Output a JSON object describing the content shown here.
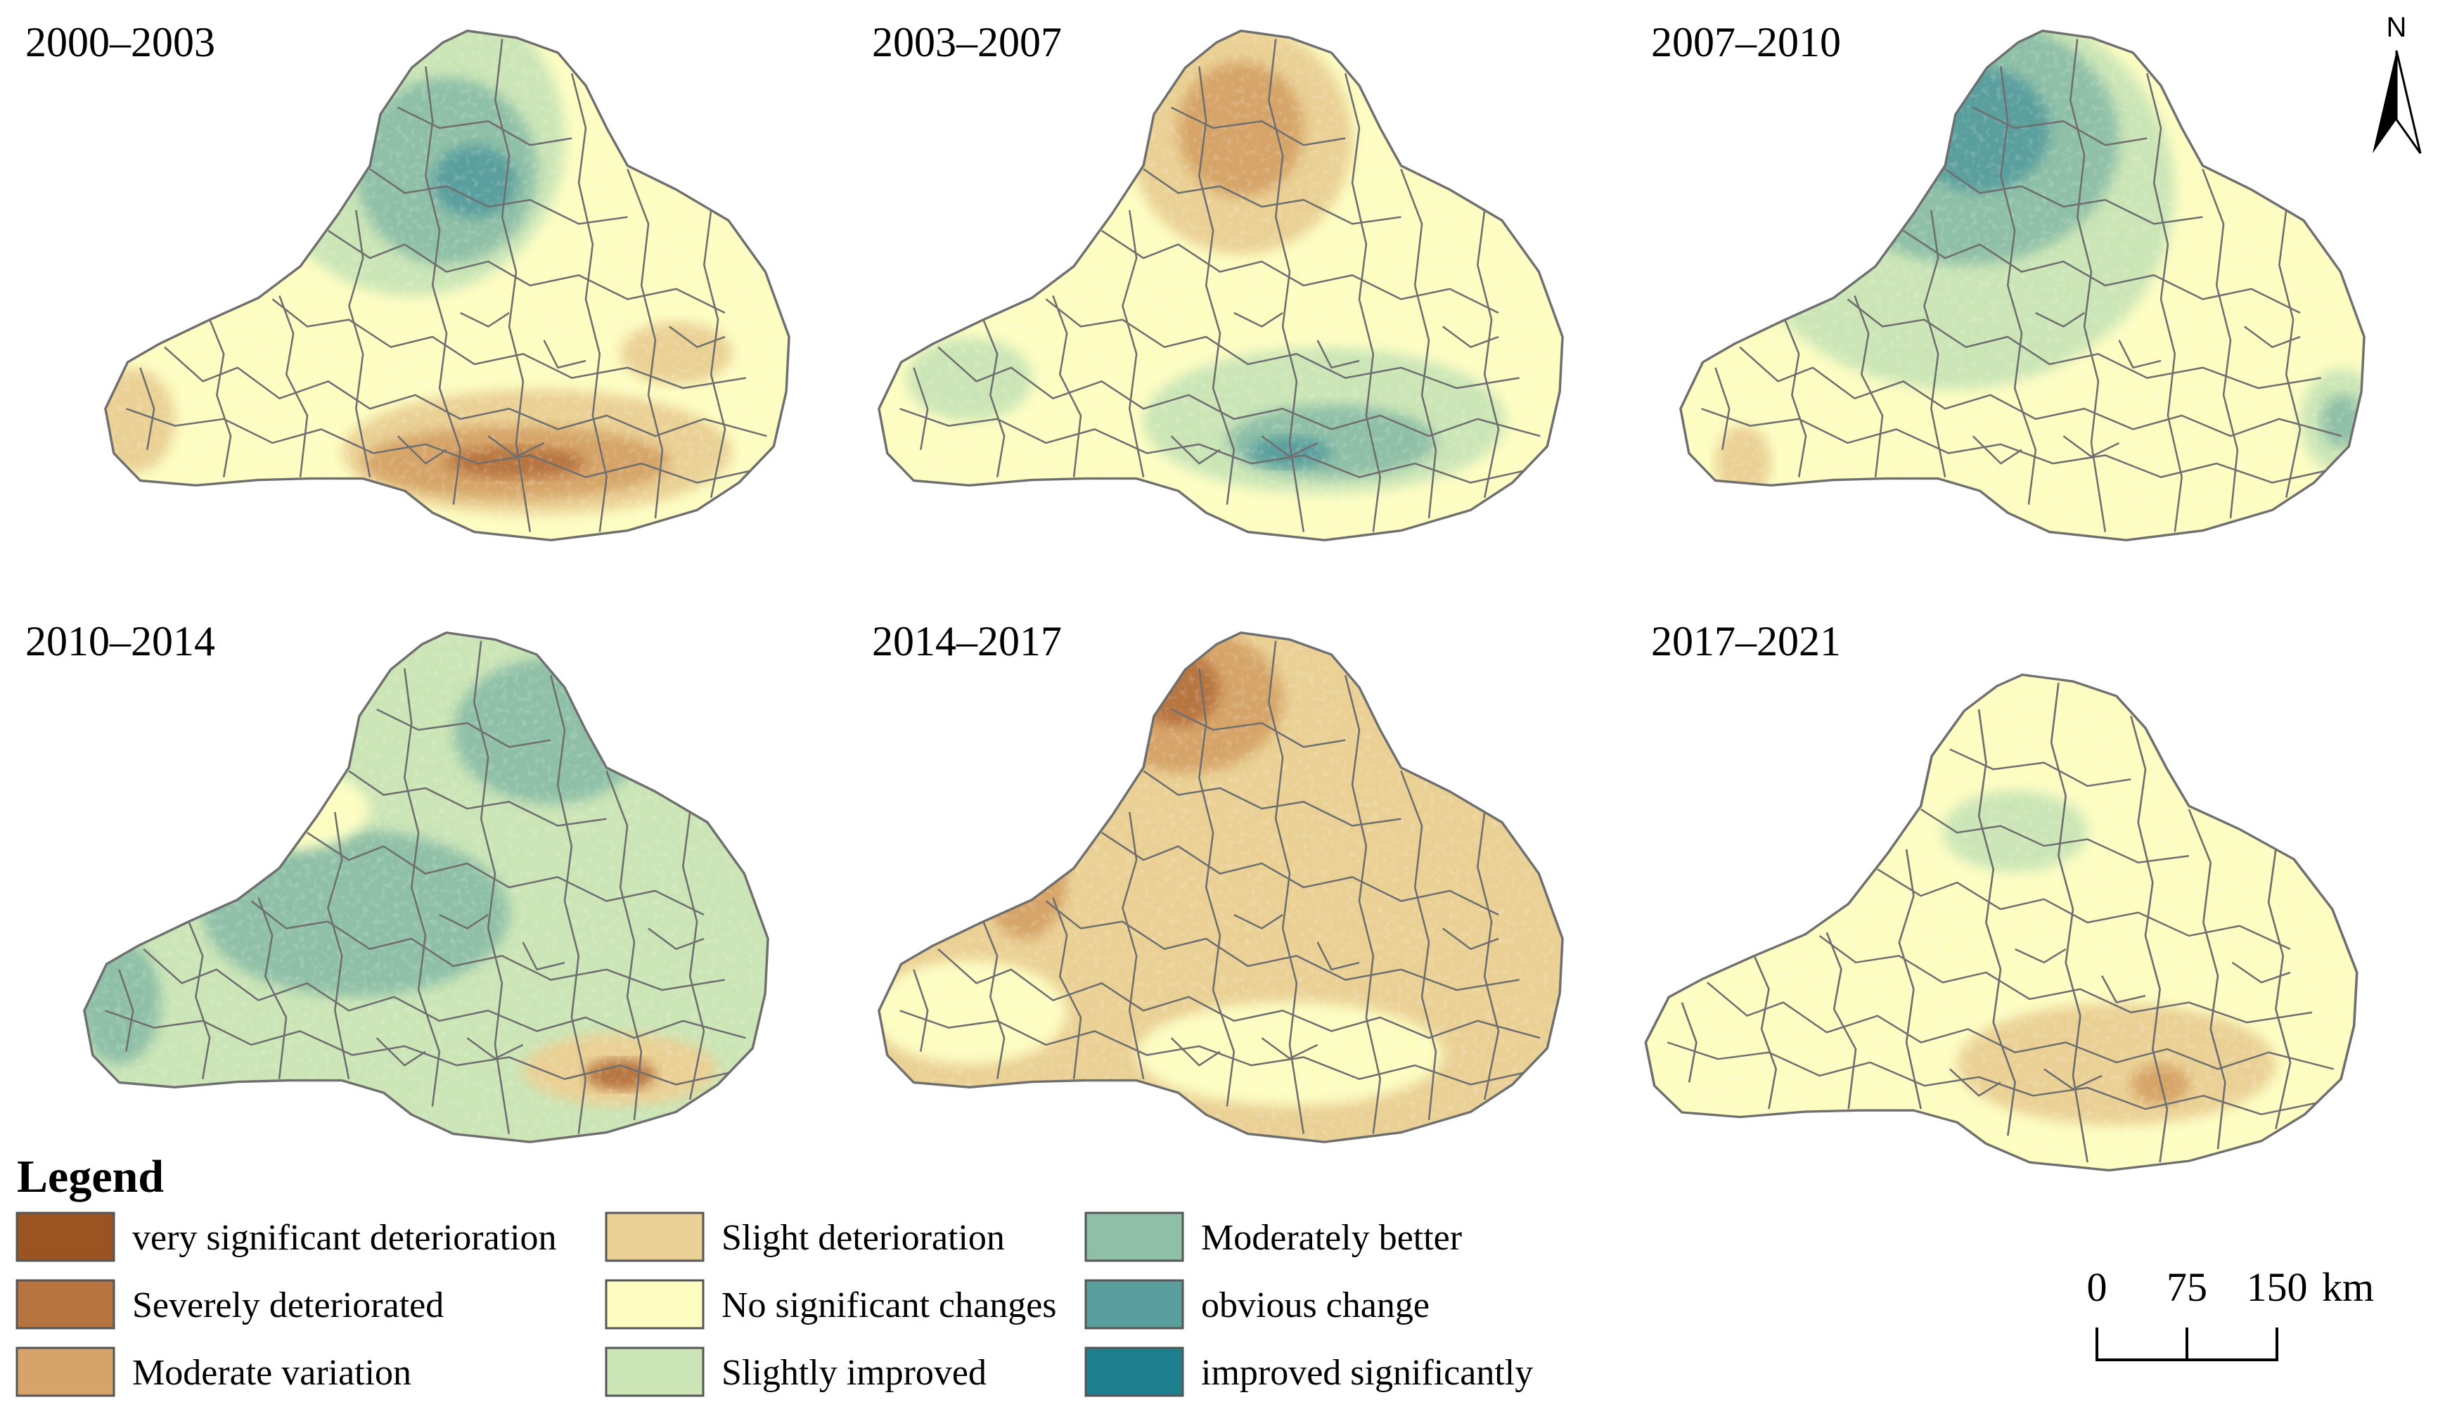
{
  "panels": [
    {
      "title": "2000–2003",
      "base": "no_change",
      "hotspots": [
        {
          "cls": "slightly_improved",
          "at": [
            0.45,
            0.22
          ],
          "r": [
            0.22,
            0.3
          ]
        },
        {
          "cls": "moderately_better",
          "at": [
            0.5,
            0.28
          ],
          "r": [
            0.13,
            0.18
          ]
        },
        {
          "cls": "obvious_change",
          "at": [
            0.54,
            0.3
          ],
          "r": [
            0.06,
            0.07
          ]
        },
        {
          "cls": "slight_deterioration",
          "at": [
            0.05,
            0.76
          ],
          "r": [
            0.06,
            0.1
          ]
        },
        {
          "cls": "slight_deterioration",
          "at": [
            0.63,
            0.82
          ],
          "r": [
            0.28,
            0.12
          ]
        },
        {
          "cls": "moderate_variation",
          "at": [
            0.6,
            0.84
          ],
          "r": [
            0.22,
            0.07
          ]
        },
        {
          "cls": "severely_deteriorated",
          "at": [
            0.6,
            0.84
          ],
          "r": [
            0.1,
            0.03
          ]
        },
        {
          "cls": "slight_deterioration",
          "at": [
            0.83,
            0.63
          ],
          "r": [
            0.08,
            0.06
          ]
        }
      ]
    },
    {
      "title": "2003–2007",
      "base": "no_change",
      "hotspots": [
        {
          "cls": "slight_deterioration",
          "at": [
            0.53,
            0.22
          ],
          "r": [
            0.16,
            0.22
          ]
        },
        {
          "cls": "moderate_variation",
          "at": [
            0.53,
            0.2
          ],
          "r": [
            0.09,
            0.13
          ]
        },
        {
          "cls": "slightly_improved",
          "at": [
            0.65,
            0.76
          ],
          "r": [
            0.26,
            0.14
          ]
        },
        {
          "cls": "moderately_better",
          "at": [
            0.66,
            0.8
          ],
          "r": [
            0.15,
            0.07
          ]
        },
        {
          "cls": "obvious_change",
          "at": [
            0.6,
            0.82
          ],
          "r": [
            0.06,
            0.03
          ]
        },
        {
          "cls": "slightly_improved",
          "at": [
            0.14,
            0.68
          ],
          "r": [
            0.09,
            0.08
          ]
        }
      ]
    },
    {
      "title": "2007–2010",
      "base": "no_change",
      "hotspots": [
        {
          "cls": "slightly_improved",
          "at": [
            0.4,
            0.32
          ],
          "r": [
            0.32,
            0.38
          ]
        },
        {
          "cls": "moderately_better",
          "at": [
            0.42,
            0.22
          ],
          "r": [
            0.22,
            0.24
          ]
        },
        {
          "cls": "obvious_change",
          "at": [
            0.44,
            0.2
          ],
          "r": [
            0.1,
            0.12
          ]
        },
        {
          "cls": "slightly_improved",
          "at": [
            0.96,
            0.76
          ],
          "r": [
            0.06,
            0.1
          ]
        },
        {
          "cls": "moderately_better",
          "at": [
            0.96,
            0.76
          ],
          "r": [
            0.03,
            0.05
          ]
        },
        {
          "cls": "slight_deterioration",
          "at": [
            0.1,
            0.84
          ],
          "r": [
            0.04,
            0.07
          ]
        }
      ]
    },
    {
      "title": "2010–2014",
      "base": "slightly_improved",
      "hotspots": [
        {
          "cls": "moderately_better",
          "at": [
            0.68,
            0.2
          ],
          "r": [
            0.14,
            0.14
          ]
        },
        {
          "cls": "moderately_better",
          "at": [
            0.06,
            0.72
          ],
          "r": [
            0.06,
            0.12
          ]
        },
        {
          "cls": "moderately_better",
          "at": [
            0.4,
            0.55
          ],
          "r": [
            0.22,
            0.16
          ]
        },
        {
          "cls": "no_change",
          "at": [
            0.3,
            0.35
          ],
          "r": [
            0.12,
            0.08
          ]
        },
        {
          "cls": "slight_deterioration",
          "at": [
            0.78,
            0.85
          ],
          "r": [
            0.14,
            0.07
          ]
        },
        {
          "cls": "severely_deteriorated",
          "at": [
            0.78,
            0.86
          ],
          "r": [
            0.05,
            0.03
          ]
        }
      ]
    },
    {
      "title": "2014–2017",
      "base": "slight_deterioration",
      "hotspots": [
        {
          "cls": "no_change",
          "at": [
            0.14,
            0.74
          ],
          "r": [
            0.14,
            0.1
          ]
        },
        {
          "cls": "no_change",
          "at": [
            0.6,
            0.82
          ],
          "r": [
            0.22,
            0.1
          ]
        },
        {
          "cls": "moderate_variation",
          "at": [
            0.45,
            0.14
          ],
          "r": [
            0.14,
            0.14
          ]
        },
        {
          "cls": "moderate_variation",
          "at": [
            0.22,
            0.48
          ],
          "r": [
            0.06,
            0.12
          ]
        },
        {
          "cls": "severely_deteriorated",
          "at": [
            0.44,
            0.12
          ],
          "r": [
            0.06,
            0.07
          ]
        }
      ]
    },
    {
      "title": "2017–2021",
      "base": "no_change",
      "hotspots": [
        {
          "cls": "slight_deterioration",
          "at": [
            0.66,
            0.78
          ],
          "r": [
            0.22,
            0.12
          ]
        },
        {
          "cls": "moderate_variation",
          "at": [
            0.72,
            0.82
          ],
          "r": [
            0.04,
            0.04
          ]
        },
        {
          "cls": "slightly_improved",
          "at": [
            0.52,
            0.32
          ],
          "r": [
            0.1,
            0.08
          ]
        }
      ]
    }
  ],
  "legend": {
    "title": "Legend",
    "items": [
      {
        "key": "very_significant_deterioration",
        "label": "very significant deterioration",
        "color": "#9c5322"
      },
      {
        "key": "severely_deteriorated",
        "label": "Severely deteriorated",
        "color": "#b7743f"
      },
      {
        "key": "moderate_variation",
        "label": "Moderate variation",
        "color": "#d6a468"
      },
      {
        "key": "slight_deterioration",
        "label": "Slight deterioration",
        "color": "#ead094"
      },
      {
        "key": "no_change",
        "label": "No significant changes",
        "color": "#fdfdc2"
      },
      {
        "key": "slightly_improved",
        "label": "Slightly improved",
        "color": "#cbe5b6"
      },
      {
        "key": "moderately_better",
        "label": "Moderately better",
        "color": "#8fc0a7"
      },
      {
        "key": "obvious_change",
        "label": "obvious change",
        "color": "#5a9f9e"
      },
      {
        "key": "improved_significantly",
        "label": "improved significantly",
        "color": "#1f7f8e"
      }
    ]
  },
  "scale_bar": {
    "ticks": [
      "0",
      "75",
      "150"
    ],
    "unit": "km"
  },
  "north_arrow": {
    "label": "N"
  }
}
